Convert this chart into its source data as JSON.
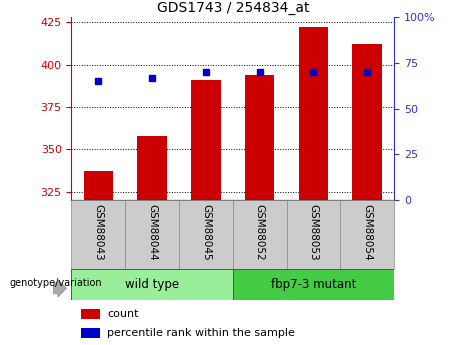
{
  "title": "GDS1743 / 254834_at",
  "categories": [
    "GSM88043",
    "GSM88044",
    "GSM88045",
    "GSM88052",
    "GSM88053",
    "GSM88054"
  ],
  "count_values": [
    337,
    358,
    391,
    394,
    422,
    412
  ],
  "percentile_values": [
    65,
    67,
    70,
    70,
    70,
    70
  ],
  "y_min": 320,
  "y_max": 428,
  "y_ticks": [
    325,
    350,
    375,
    400,
    425
  ],
  "y2_ticks": [
    0,
    25,
    50,
    75,
    100
  ],
  "bar_color": "#cc0000",
  "dot_color": "#0000cc",
  "bar_width": 0.55,
  "groups": [
    {
      "label": "wild type",
      "indices": [
        0,
        1,
        2
      ],
      "color": "#99ee99"
    },
    {
      "label": "fbp7-3 mutant",
      "indices": [
        3,
        4,
        5
      ],
      "color": "#44cc44"
    }
  ],
  "group_label": "genotype/variation",
  "legend_count_label": "count",
  "legend_pct_label": "percentile rank within the sample",
  "left_axis_color": "#cc0000",
  "right_axis_color": "#3333cc",
  "background_color": "#ffffff",
  "plot_bg_color": "#ffffff",
  "grid_color": "#000000",
  "tick_label_bg": "#cccccc"
}
